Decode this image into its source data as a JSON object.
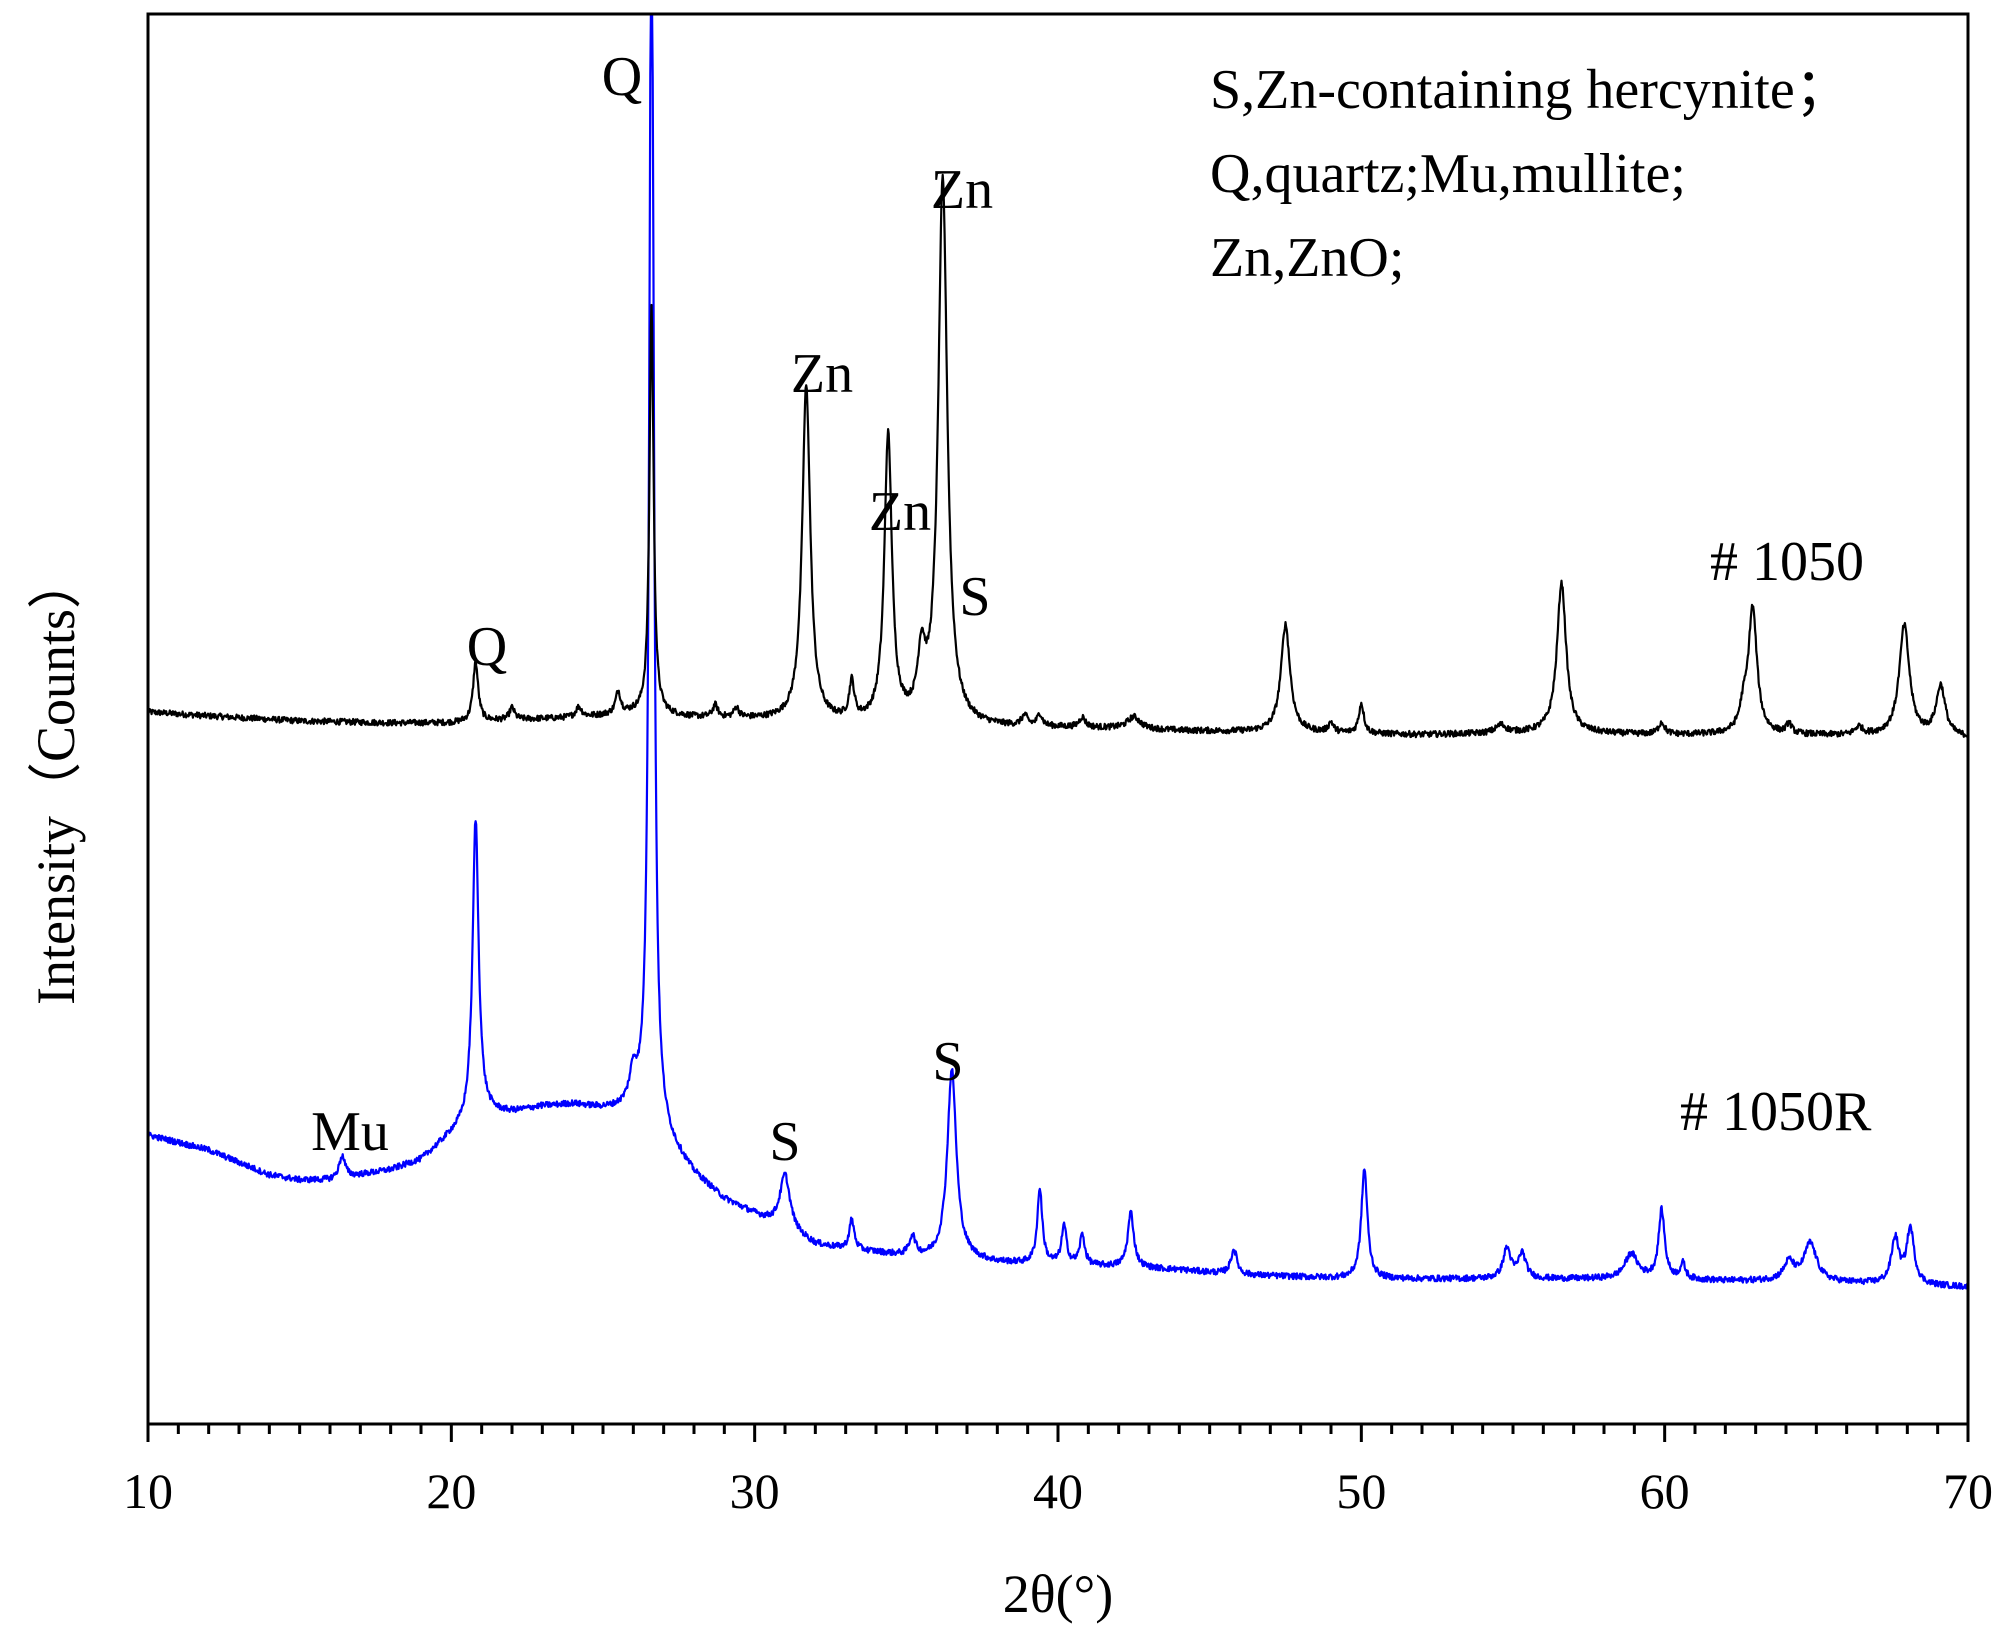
{
  "chart_data": {
    "type": "line",
    "title": "",
    "xlabel": "2θ(°)",
    "ylabel": "Intensity（Counts）",
    "xlim": [
      10,
      70
    ],
    "xticks": [
      10,
      20,
      30,
      40,
      50,
      60,
      70
    ],
    "x_minor_step": 1,
    "y_ticks_shown": false,
    "grid": false,
    "legend_text": [
      "S,Zn-containing hercynite；",
      "Q,quartz;Mu,mullite;",
      "Zn,ZnO;"
    ],
    "legend_placement": "top-right",
    "series": [
      {
        "name": "# 1050",
        "color": "#000000",
        "baseline_shape": [
          [
            10,
            78
          ],
          [
            12,
            74
          ],
          [
            15,
            69
          ],
          [
            18,
            67
          ],
          [
            20,
            67
          ],
          [
            22,
            70
          ],
          [
            24,
            72
          ],
          [
            26,
            76
          ],
          [
            28,
            72
          ],
          [
            30,
            70
          ],
          [
            32,
            67
          ],
          [
            34,
            64
          ],
          [
            36,
            62
          ],
          [
            38,
            62
          ],
          [
            40,
            62
          ],
          [
            42,
            61
          ],
          [
            44,
            59
          ],
          [
            46,
            58
          ],
          [
            48,
            57
          ],
          [
            50,
            56
          ],
          [
            52,
            55
          ],
          [
            54,
            56
          ],
          [
            56,
            57
          ],
          [
            58,
            56
          ],
          [
            60,
            55
          ],
          [
            62,
            55
          ],
          [
            64,
            55
          ],
          [
            66,
            54
          ],
          [
            68,
            54
          ],
          [
            70,
            52
          ]
        ],
        "peaks": [
          {
            "x": 20.8,
            "height": 60,
            "width": 0.1
          },
          {
            "x": 22.0,
            "height": 12,
            "width": 0.1
          },
          {
            "x": 24.2,
            "height": 10,
            "width": 0.12
          },
          {
            "x": 25.5,
            "height": 22,
            "width": 0.1
          },
          {
            "x": 26.6,
            "height": 410,
            "width": 0.08
          },
          {
            "x": 28.7,
            "height": 12,
            "width": 0.1
          },
          {
            "x": 29.4,
            "height": 10,
            "width": 0.1
          },
          {
            "x": 31.7,
            "height": 335,
            "width": 0.16
          },
          {
            "x": 33.2,
            "height": 37,
            "width": 0.1
          },
          {
            "x": 34.4,
            "height": 287,
            "width": 0.15
          },
          {
            "x": 35.5,
            "height": 60,
            "width": 0.15
          },
          {
            "x": 36.2,
            "height": 545,
            "width": 0.18
          },
          {
            "x": 38.9,
            "height": 10,
            "width": 0.12
          },
          {
            "x": 39.4,
            "height": 12,
            "width": 0.1
          },
          {
            "x": 40.8,
            "height": 10,
            "width": 0.12
          },
          {
            "x": 42.5,
            "height": 12,
            "width": 0.25
          },
          {
            "x": 47.5,
            "height": 108,
            "width": 0.18
          },
          {
            "x": 49.0,
            "height": 10,
            "width": 0.1
          },
          {
            "x": 50.0,
            "height": 30,
            "width": 0.1
          },
          {
            "x": 54.6,
            "height": 8,
            "width": 0.2
          },
          {
            "x": 56.6,
            "height": 150,
            "width": 0.18
          },
          {
            "x": 59.9,
            "height": 12,
            "width": 0.12
          },
          {
            "x": 62.6,
            "height": 20,
            "width": 0.15
          },
          {
            "x": 62.9,
            "height": 125,
            "width": 0.17
          },
          {
            "x": 64.1,
            "height": 10,
            "width": 0.1
          },
          {
            "x": 66.4,
            "height": 8,
            "width": 0.15
          },
          {
            "x": 67.9,
            "height": 110,
            "width": 0.2
          },
          {
            "x": 69.1,
            "height": 50,
            "width": 0.18
          }
        ]
      },
      {
        "name": "# 1050R",
        "color": "#0000ff",
        "baseline_shape": [
          [
            10,
            240
          ],
          [
            12,
            225
          ],
          [
            14,
            200
          ],
          [
            15,
            195
          ],
          [
            16,
            195
          ],
          [
            18,
            205
          ],
          [
            19,
            215
          ],
          [
            20,
            240
          ],
          [
            21,
            260
          ],
          [
            22,
            262
          ],
          [
            23,
            268
          ],
          [
            24,
            270
          ],
          [
            25,
            265
          ],
          [
            26,
            262
          ],
          [
            27,
            235
          ],
          [
            28,
            200
          ],
          [
            29,
            175
          ],
          [
            30,
            160
          ],
          [
            31,
            145
          ],
          [
            32,
            130
          ],
          [
            33,
            125
          ],
          [
            34,
            122
          ],
          [
            35,
            118
          ],
          [
            36,
            115
          ],
          [
            37,
            115
          ],
          [
            38,
            112
          ],
          [
            40,
            110
          ],
          [
            42,
            108
          ],
          [
            44,
            105
          ],
          [
            46,
            100
          ],
          [
            48,
            98
          ],
          [
            50,
            96
          ],
          [
            52,
            96
          ],
          [
            54,
            96
          ],
          [
            56,
            96
          ],
          [
            58,
            96
          ],
          [
            60,
            96
          ],
          [
            62,
            94
          ],
          [
            64,
            94
          ],
          [
            66,
            92
          ],
          [
            68,
            90
          ],
          [
            70,
            88
          ]
        ],
        "peaks": [
          {
            "x": 16.4,
            "height": 22,
            "width": 0.12
          },
          {
            "x": 20.8,
            "height": 300,
            "width": 0.12
          },
          {
            "x": 26.0,
            "height": 30,
            "width": 0.15
          },
          {
            "x": 26.6,
            "height": 1260,
            "width": 0.09
          },
          {
            "x": 31.0,
            "height": 55,
            "width": 0.2
          },
          {
            "x": 33.2,
            "height": 30,
            "width": 0.1
          },
          {
            "x": 35.2,
            "height": 20,
            "width": 0.12
          },
          {
            "x": 36.5,
            "height": 190,
            "width": 0.18
          },
          {
            "x": 39.4,
            "height": 75,
            "width": 0.1
          },
          {
            "x": 40.2,
            "height": 38,
            "width": 0.1
          },
          {
            "x": 40.8,
            "height": 30,
            "width": 0.1
          },
          {
            "x": 42.4,
            "height": 55,
            "width": 0.12
          },
          {
            "x": 45.8,
            "height": 25,
            "width": 0.12
          },
          {
            "x": 50.1,
            "height": 110,
            "width": 0.12
          },
          {
            "x": 54.8,
            "height": 30,
            "width": 0.15
          },
          {
            "x": 55.3,
            "height": 25,
            "width": 0.15
          },
          {
            "x": 58.9,
            "height": 25,
            "width": 0.25
          },
          {
            "x": 59.9,
            "height": 68,
            "width": 0.12
          },
          {
            "x": 60.6,
            "height": 15,
            "width": 0.1
          },
          {
            "x": 64.1,
            "height": 18,
            "width": 0.2
          },
          {
            "x": 64.8,
            "height": 38,
            "width": 0.25
          },
          {
            "x": 67.6,
            "height": 45,
            "width": 0.15
          },
          {
            "x": 68.1,
            "height": 55,
            "width": 0.15
          }
        ]
      }
    ],
    "annotations": [
      {
        "text": "Q",
        "series": 1,
        "x": 26.6
      },
      {
        "text": "Q",
        "series": 0,
        "x": 20.8
      },
      {
        "text": "Zn",
        "series": 0,
        "x": 31.7
      },
      {
        "text": "Zn",
        "series": 0,
        "x": 34.4
      },
      {
        "text": "Zn",
        "series": 0,
        "x": 36.2
      },
      {
        "text": "S",
        "series": 0,
        "x": 36.9
      },
      {
        "text": "Mu",
        "series": 1,
        "x": 16.4
      },
      {
        "text": "S",
        "series": 1,
        "x": 31.0
      },
      {
        "text": "S",
        "series": 1,
        "x": 36.5
      }
    ]
  }
}
